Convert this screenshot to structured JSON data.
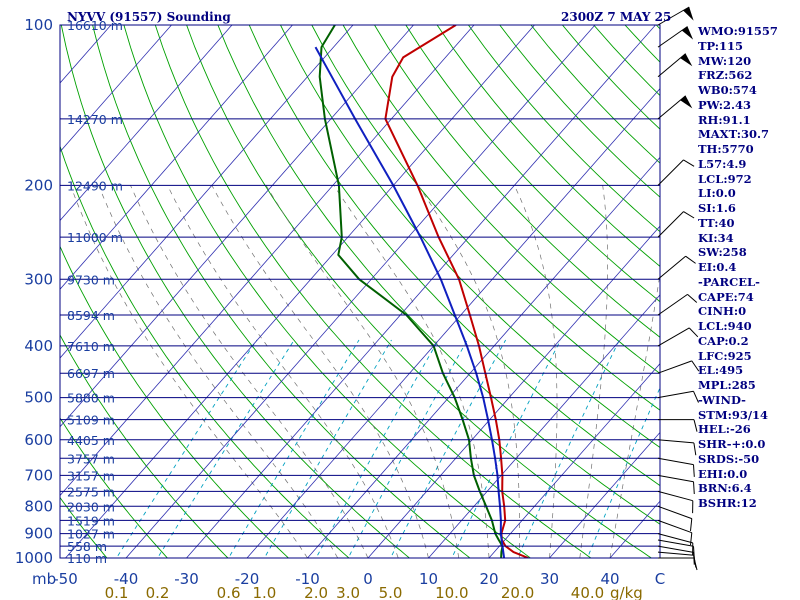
{
  "header": {
    "title": "NYVV (91557) Sounding",
    "time": "2300Z  7 MAY 25"
  },
  "indices": [
    "WMO:91557",
    "TP:115",
    "MW:120",
    "FRZ:562",
    "WB0:574",
    "PW:2.43",
    "RH:91.1",
    "MAXT:30.7",
    "TH:5770",
    "L57:4.9",
    "LCL:972",
    "LI:0.0",
    "SI:1.6",
    "TT:40",
    "KI:34",
    "SW:258",
    "EI:0.4",
    "-PARCEL-",
    "CAPE:74",
    "CINH:0",
    "LCL:940",
    "CAP:0.2",
    "LFC:925",
    "EL:495",
    "MPL:285",
    "-WIND-",
    "STM:93/14",
    "HEL:-26",
    "SHR-+:0.0",
    "SRDS:-50",
    "EHI:0.0",
    "BRN:6.4",
    "BSHR:12"
  ],
  "colors": {
    "isobar": "#000080",
    "isotherm": "#3030b0",
    "dry_adiabat": "#00a000",
    "moist_adiabat": "#707070",
    "mixing_ratio": "#00a0c0",
    "temperature": "#c00000",
    "dewpoint": "#006000",
    "parcel": "#1020c0",
    "wind_barb": "#000000",
    "index_text": "#000080"
  },
  "chart_data": {
    "type": "skew-t",
    "title": "NYVV (91557) Sounding",
    "valid_time": "2300Z  7 MAY 25",
    "pressure_unit": "mb",
    "pressure_axis": {
      "scale": "log",
      "range": [
        1000,
        100
      ]
    },
    "pressure_ticks": [
      100,
      200,
      300,
      400,
      500,
      600,
      700,
      800,
      900,
      1000
    ],
    "temperature_ticks": [
      -50,
      -40,
      -30,
      -20,
      -10,
      0,
      10,
      20,
      30,
      40
    ],
    "temperature_axis_end_label": "C",
    "mixing_ratio_unit": "g/kg",
    "mixing_ratio_labels": [
      "0.1",
      "0.2",
      "0.6",
      "1.0",
      "2.0",
      "3.0",
      "5.0",
      "10.0",
      "20.0",
      "40.0"
    ],
    "height_labels": [
      {
        "p": 100,
        "label": "16610 m"
      },
      {
        "p": 150,
        "label": "14270 m"
      },
      {
        "p": 200,
        "label": "12490 m"
      },
      {
        "p": 250,
        "label": "11000 m"
      },
      {
        "p": 300,
        "label": "9730 m"
      },
      {
        "p": 350,
        "label": "8594 m"
      },
      {
        "p": 400,
        "label": "7610 m"
      },
      {
        "p": 450,
        "label": "6697 m"
      },
      {
        "p": 500,
        "label": "5880 m"
      },
      {
        "p": 550,
        "label": "5109 m"
      },
      {
        "p": 600,
        "label": "4405 m"
      },
      {
        "p": 650,
        "label": "3757 m"
      },
      {
        "p": 700,
        "label": "3157 m"
      },
      {
        "p": 750,
        "label": "2575 m"
      },
      {
        "p": 800,
        "label": "2030 m"
      },
      {
        "p": 850,
        "label": "1519 m"
      },
      {
        "p": 900,
        "label": "1027 m"
      },
      {
        "p": 950,
        "label": "558 m"
      },
      {
        "p": 1000,
        "label": "110 m"
      }
    ],
    "series": [
      {
        "key": "temperature",
        "points": [
          {
            "p": 1000,
            "t": 26.5
          },
          {
            "p": 975,
            "t": 23.2
          },
          {
            "p": 950,
            "t": 21.0
          },
          {
            "p": 925,
            "t": 19.5
          },
          {
            "p": 900,
            "t": 18.5
          },
          {
            "p": 850,
            "t": 17.2
          },
          {
            "p": 800,
            "t": 15.0
          },
          {
            "p": 750,
            "t": 12.5
          },
          {
            "p": 700,
            "t": 10.2
          },
          {
            "p": 650,
            "t": 7.5
          },
          {
            "p": 600,
            "t": 4.5
          },
          {
            "p": 550,
            "t": 1.0
          },
          {
            "p": 500,
            "t": -3.0
          },
          {
            "p": 450,
            "t": -7.5
          },
          {
            "p": 400,
            "t": -12.5
          },
          {
            "p": 350,
            "t": -18.5
          },
          {
            "p": 300,
            "t": -25.5
          },
          {
            "p": 250,
            "t": -35.0
          },
          {
            "p": 200,
            "t": -46.0
          },
          {
            "p": 150,
            "t": -61.0
          },
          {
            "p": 125,
            "t": -66.0
          },
          {
            "p": 115,
            "t": -67.0
          },
          {
            "p": 100,
            "t": -63.0
          }
        ]
      },
      {
        "key": "dewpoint",
        "points": [
          {
            "p": 1000,
            "t": 22.0
          },
          {
            "p": 975,
            "t": 21.2
          },
          {
            "p": 950,
            "t": 20.5
          },
          {
            "p": 925,
            "t": 19.0
          },
          {
            "p": 900,
            "t": 17.5
          },
          {
            "p": 850,
            "t": 15.0
          },
          {
            "p": 800,
            "t": 12.0
          },
          {
            "p": 750,
            "t": 8.8
          },
          {
            "p": 700,
            "t": 5.5
          },
          {
            "p": 650,
            "t": 2.5
          },
          {
            "p": 600,
            "t": -0.5
          },
          {
            "p": 550,
            "t": -4.5
          },
          {
            "p": 500,
            "t": -9.0
          },
          {
            "p": 450,
            "t": -14.5
          },
          {
            "p": 400,
            "t": -20.0
          },
          {
            "p": 350,
            "t": -29.0
          },
          {
            "p": 300,
            "t": -42.0
          },
          {
            "p": 270,
            "t": -49.0
          },
          {
            "p": 250,
            "t": -51.0
          },
          {
            "p": 200,
            "t": -59.0
          },
          {
            "p": 150,
            "t": -71.0
          },
          {
            "p": 125,
            "t": -78.0
          },
          {
            "p": 110,
            "t": -82.0
          },
          {
            "p": 100,
            "t": -83.0
          }
        ]
      },
      {
        "key": "parcel",
        "points": [
          {
            "p": 1000,
            "t": 22.5
          },
          {
            "p": 950,
            "t": 20.5
          },
          {
            "p": 900,
            "t": 18.4
          },
          {
            "p": 850,
            "t": 16.5
          },
          {
            "p": 800,
            "t": 14.3
          },
          {
            "p": 750,
            "t": 11.9
          },
          {
            "p": 700,
            "t": 9.4
          },
          {
            "p": 650,
            "t": 6.5
          },
          {
            "p": 600,
            "t": 3.3
          },
          {
            "p": 550,
            "t": -0.3
          },
          {
            "p": 500,
            "t": -4.3
          },
          {
            "p": 450,
            "t": -9.0
          },
          {
            "p": 400,
            "t": -14.5
          },
          {
            "p": 350,
            "t": -21.0
          },
          {
            "p": 300,
            "t": -28.5
          },
          {
            "p": 250,
            "t": -38.0
          },
          {
            "p": 200,
            "t": -50.0
          },
          {
            "p": 150,
            "t": -66.0
          },
          {
            "p": 125,
            "t": -76.0
          },
          {
            "p": 110,
            "t": -83.0
          }
        ]
      }
    ],
    "wind_barbs": [
      {
        "p": 1000,
        "dir": 90,
        "spd": 10
      },
      {
        "p": 975,
        "dir": 95,
        "spd": 10
      },
      {
        "p": 950,
        "dir": 100,
        "spd": 10
      },
      {
        "p": 925,
        "dir": 100,
        "spd": 10
      },
      {
        "p": 900,
        "dir": 105,
        "spd": 10
      },
      {
        "p": 850,
        "dir": 110,
        "spd": 10
      },
      {
        "p": 800,
        "dir": 110,
        "spd": 10
      },
      {
        "p": 750,
        "dir": 105,
        "spd": 10
      },
      {
        "p": 700,
        "dir": 100,
        "spd": 10
      },
      {
        "p": 650,
        "dir": 100,
        "spd": 10
      },
      {
        "p": 600,
        "dir": 95,
        "spd": 10
      },
      {
        "p": 550,
        "dir": 90,
        "spd": 10
      },
      {
        "p": 500,
        "dir": 80,
        "spd": 10
      },
      {
        "p": 450,
        "dir": 70,
        "spd": 10
      },
      {
        "p": 400,
        "dir": 60,
        "spd": 10
      },
      {
        "p": 350,
        "dir": 55,
        "spd": 10
      },
      {
        "p": 300,
        "dir": 50,
        "spd": 10
      },
      {
        "p": 250,
        "dir": 45,
        "spd": 10
      },
      {
        "p": 200,
        "dir": 45,
        "spd": 10
      },
      {
        "p": 150,
        "dir": 50,
        "spd": 50
      },
      {
        "p": 125,
        "dir": 50,
        "spd": 50
      },
      {
        "p": 110,
        "dir": 55,
        "spd": 50
      },
      {
        "p": 100,
        "dir": 60,
        "spd": 50
      }
    ]
  }
}
